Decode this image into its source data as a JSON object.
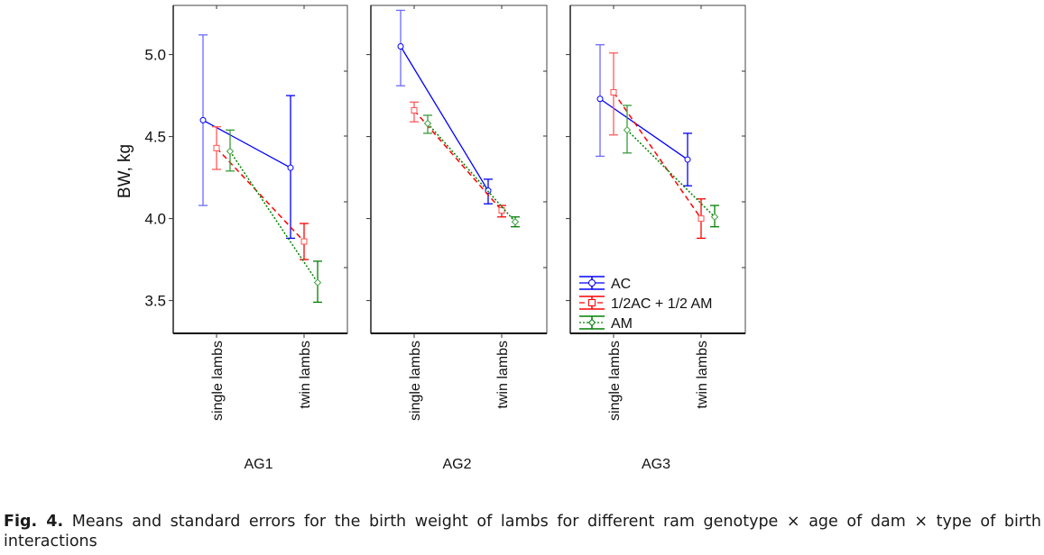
{
  "chart_data": {
    "type": "line",
    "subtype": "interaction-plot-with-error-bars",
    "ylabel": "BW, kg",
    "ylim": [
      3.3,
      5.3
    ],
    "yticks": [
      3.5,
      4.0,
      4.5,
      5.0
    ],
    "ytick_labels": [
      "3.5",
      "4.0",
      "4.5",
      "5.0"
    ],
    "grid": false,
    "categories": [
      "single lambs",
      "twin lambs"
    ],
    "legend": {
      "placement": "bottom-left of panel 3",
      "entries": [
        {
          "name": "AC",
          "color": "#0000ff",
          "line": "solid",
          "marker": "circle"
        },
        {
          "name": "1/2AC + 1/2 AM",
          "color": "#ff0000",
          "line": "dashed",
          "marker": "square"
        },
        {
          "name": "AM",
          "color": "#008000",
          "line": "dotted",
          "marker": "diamond"
        }
      ]
    },
    "panels": [
      {
        "name": "AG1",
        "series": [
          {
            "name": "AC",
            "mean": [
              4.6,
              4.31
            ],
            "upper": [
              5.12,
              4.75
            ],
            "lower": [
              4.08,
              3.88
            ]
          },
          {
            "name": "1/2AC + 1/2 AM",
            "mean": [
              4.43,
              3.86
            ],
            "upper": [
              4.56,
              3.97
            ],
            "lower": [
              4.3,
              3.75
            ]
          },
          {
            "name": "AM",
            "mean": [
              4.41,
              3.61
            ],
            "upper": [
              4.54,
              3.74
            ],
            "lower": [
              4.29,
              3.49
            ]
          }
        ]
      },
      {
        "name": "AG2",
        "series": [
          {
            "name": "AC",
            "mean": [
              5.05,
              4.17
            ],
            "upper": [
              5.27,
              4.24
            ],
            "lower": [
              4.81,
              4.09
            ]
          },
          {
            "name": "1/2AC + 1/2 AM",
            "mean": [
              4.66,
              4.05
            ],
            "upper": [
              4.71,
              4.08
            ],
            "lower": [
              4.59,
              4.01
            ]
          },
          {
            "name": "AM",
            "mean": [
              4.58,
              3.98
            ],
            "upper": [
              4.63,
              4.01
            ],
            "lower": [
              4.52,
              3.95
            ]
          }
        ]
      },
      {
        "name": "AG3",
        "series": [
          {
            "name": "AC",
            "mean": [
              4.73,
              4.36
            ],
            "upper": [
              5.06,
              4.52
            ],
            "lower": [
              4.38,
              4.2
            ]
          },
          {
            "name": "1/2AC + 1/2 AM",
            "mean": [
              4.77,
              4.0
            ],
            "upper": [
              5.01,
              4.12
            ],
            "lower": [
              4.51,
              3.88
            ]
          },
          {
            "name": "AM",
            "mean": [
              4.54,
              4.01
            ],
            "upper": [
              4.69,
              4.08
            ],
            "lower": [
              4.4,
              3.95
            ]
          }
        ]
      }
    ]
  },
  "caption": {
    "label": "Fig. 4.",
    "text": " Means and standard errors for the birth weight of lambs for different ram genotype × age of dam × type of birth interactions"
  }
}
